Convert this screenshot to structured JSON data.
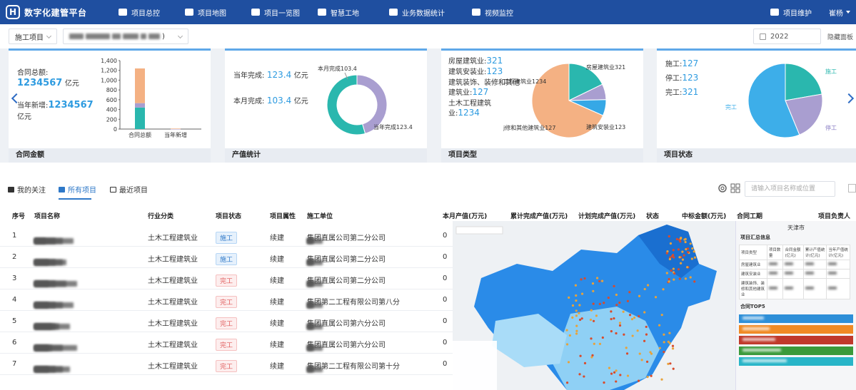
{
  "app": {
    "title": "数字化建管平台",
    "logo_letter": "H"
  },
  "nav": {
    "items": [
      {
        "label": "项目总控",
        "icon": "monitor-icon"
      },
      {
        "label": "项目地图",
        "icon": "map-pin-icon"
      },
      {
        "label": "项目一览图",
        "icon": "grid-icon"
      },
      {
        "label": "智慧工地",
        "icon": "helmet-icon"
      },
      {
        "label": "业务数据统计",
        "icon": "bar-chart-icon"
      },
      {
        "label": "视频监控",
        "icon": "camera-icon"
      }
    ],
    "maintenance": "项目维护",
    "user": "崔杨"
  },
  "filters": {
    "project_select": "施工项目",
    "company_select_suffix": ")",
    "year": "2022",
    "hide_panel": "隐藏面板"
  },
  "cards": {
    "contract": {
      "footer": "合同金额",
      "total_label": "合同总额:",
      "total_value": "1234567",
      "total_unit": "亿元",
      "new_label": "当年新增:",
      "new_value": "1234567",
      "new_unit": "亿元",
      "chart_data": {
        "type": "bar",
        "categories": [
          "合同总额",
          "当年新增"
        ],
        "series": [
          {
            "values": [
              440,
              0
            ],
            "color": "#2ab7ae"
          },
          {
            "values": [
              90,
              0
            ],
            "color": "#a99ed0"
          },
          {
            "values": [
              710,
              10
            ],
            "color": "#f4b183"
          }
        ],
        "yticks": [
          "0",
          "200",
          "400",
          "600",
          "800",
          "1,000",
          "1,200",
          "1,400"
        ],
        "ylim": [
          0,
          1400
        ]
      }
    },
    "output": {
      "footer": "产值统计",
      "year_label": "当年完成:",
      "year_value": "123.4",
      "year_unit": "亿元",
      "month_label": "本月完成:",
      "month_value": "103.4",
      "month_unit": "亿元",
      "chart_data": {
        "type": "pie",
        "labels": [
          "本月完成103.4",
          "当年完成123.4"
        ],
        "values": [
          103.4,
          123.4
        ],
        "colors": [
          "#a99ed0",
          "#2ab7ae"
        ]
      }
    },
    "type": {
      "footer": "项目类型",
      "lines": [
        {
          "label": "房屋建筑业:",
          "value": "321"
        },
        {
          "label": "建筑安装业:",
          "value": "123"
        },
        {
          "label": "建筑装饰、装修和其他建筑业:",
          "value": "127"
        },
        {
          "label": "土木工程建筑业:",
          "value": "1234"
        }
      ],
      "chart_data": {
        "type": "pie",
        "labels": [
          "房屋建筑业321",
          "建筑安装业123",
          "j修和其他建筑业127",
          "工程建筑业1234"
        ],
        "values": [
          321,
          123,
          127,
          1234
        ],
        "colors": [
          "#2ab7ae",
          "#a99ed0",
          "#36a8e6",
          "#f4b183"
        ]
      }
    },
    "status": {
      "footer": "项目状态",
      "lines": [
        {
          "label": "施工:",
          "value": "127"
        },
        {
          "label": "停工:",
          "value": "123"
        },
        {
          "label": "完工:",
          "value": "321"
        }
      ],
      "chart_data": {
        "type": "pie",
        "labels": [
          "施工",
          "停工",
          "完工"
        ],
        "values": [
          127,
          123,
          321
        ],
        "colors": [
          "#2ab7ae",
          "#a99ed0",
          "#3daee9"
        ]
      }
    }
  },
  "tabs": {
    "follow": "我的关注",
    "all": "所有项目",
    "recent": "最近项目"
  },
  "search_placeholder": "请输入项目名称或位置",
  "table": {
    "headers": [
      "序号",
      "项目名称",
      "行业分类",
      "项目状态",
      "项目属性",
      "施工单位",
      "本月产值(万元)",
      "累计完成产值(万元)",
      "计划完成产值(万元)",
      "状态",
      "中标金额(万元)",
      "合同工期",
      "项目负责人"
    ],
    "rows": [
      {
        "no": "1",
        "industry": "土木工程建筑业",
        "status": "施工",
        "kind": "busy",
        "attr": "续建",
        "unit": "集团直属公司第二分公司",
        "month": "0"
      },
      {
        "no": "2",
        "industry": "土木工程建筑业",
        "status": "施工",
        "kind": "busy",
        "attr": "续建",
        "unit": "集团直属公司第二分公司",
        "month": "0"
      },
      {
        "no": "3",
        "industry": "土木工程建筑业",
        "status": "完工",
        "kind": "done",
        "attr": "续建",
        "unit": "集团直属公司第二分公司",
        "month": "0"
      },
      {
        "no": "4",
        "industry": "土木工程建筑业",
        "status": "完工",
        "kind": "done",
        "attr": "续建",
        "unit": "集团第二工程有限公司第八分",
        "month": "0"
      },
      {
        "no": "5",
        "industry": "土木工程建筑业",
        "status": "完工",
        "kind": "done",
        "attr": "续建",
        "unit": "集团直属公司第六分公司",
        "month": "0"
      },
      {
        "no": "6",
        "industry": "土木工程建筑业",
        "status": "完工",
        "kind": "done",
        "attr": "续建",
        "unit": "集团直属公司第六分公司",
        "month": "0"
      },
      {
        "no": "7",
        "industry": "土木工程建筑业",
        "status": "完工",
        "kind": "done",
        "attr": "续建",
        "unit": "集团第二工程有限公司第十分",
        "month": "0"
      }
    ]
  },
  "map_panel": {
    "city": "天津市",
    "summary_title": "项目汇总信息",
    "summary_headers": [
      "项目类型",
      "项目数量",
      "合同金额(亿元)",
      "累计产值统计(亿元)",
      "当年产值统计(亿元)"
    ],
    "summary_rows": [
      "房屋建筑业",
      "建筑安装业",
      "建筑装饰、装修和其他建筑业"
    ],
    "top_title": "合同TOP5",
    "top_colors": [
      "#2e8fd8",
      "#f08a24",
      "#c0392b",
      "#3a9a3a",
      "#28b5c8"
    ]
  }
}
